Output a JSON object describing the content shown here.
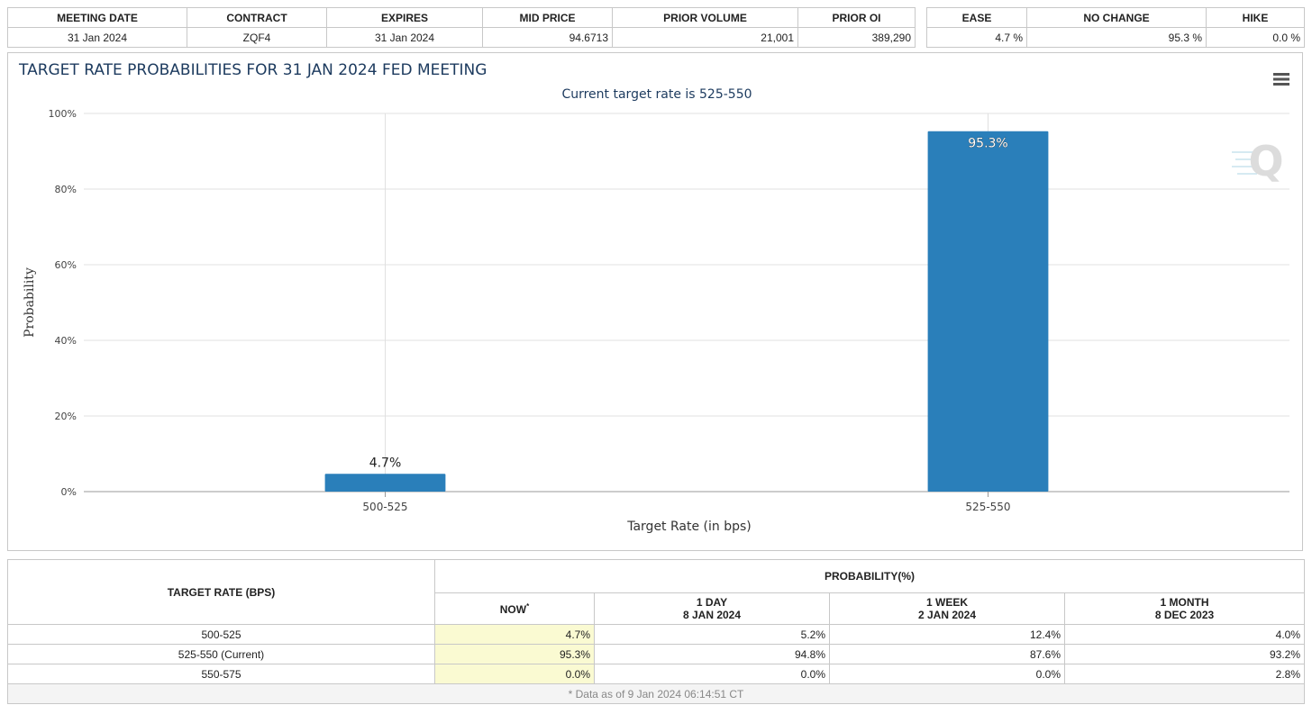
{
  "contract_table": {
    "headers": [
      "MEETING DATE",
      "CONTRACT",
      "EXPIRES",
      "MID PRICE",
      "PRIOR VOLUME",
      "PRIOR OI"
    ],
    "row": [
      "31 Jan 2024",
      "ZQF4",
      "31 Jan 2024",
      "94.6713",
      "21,001",
      "389,290"
    ]
  },
  "summary_table": {
    "headers": [
      "EASE",
      "NO CHANGE",
      "HIKE"
    ],
    "row": [
      "4.7 %",
      "95.3 %",
      "0.0 %"
    ]
  },
  "chart_data": {
    "type": "bar",
    "title": "TARGET RATE PROBABILITIES FOR 31 JAN 2024 FED MEETING",
    "subtitle": "Current target rate is 525-550",
    "xlabel": "Target Rate (in bps)",
    "ylabel": "Probability",
    "categories": [
      "500-525",
      "525-550"
    ],
    "values": [
      4.7,
      95.3
    ],
    "value_labels": [
      "4.7%",
      "95.3%"
    ],
    "ylim": [
      0,
      100
    ],
    "yticks": [
      "0%",
      "20%",
      "40%",
      "60%",
      "80%",
      "100%"
    ],
    "grid": true,
    "bar_color": "#2a7fba",
    "menu_icon": "hamburger-menu-icon",
    "watermark_icon": "q-logo-icon"
  },
  "probability_table": {
    "rate_header": "TARGET RATE (BPS)",
    "group_header": "PROBABILITY(%)",
    "columns": [
      {
        "line1": "NOW",
        "line2": "",
        "mark": "*"
      },
      {
        "line1": "1 DAY",
        "line2": "8 JAN 2024",
        "mark": ""
      },
      {
        "line1": "1 WEEK",
        "line2": "2 JAN 2024",
        "mark": ""
      },
      {
        "line1": "1 MONTH",
        "line2": "8 DEC 2023",
        "mark": ""
      }
    ],
    "rows": [
      {
        "rate": "500-525",
        "values": [
          "4.7%",
          "5.2%",
          "12.4%",
          "4.0%"
        ]
      },
      {
        "rate": "525-550 (Current)",
        "values": [
          "95.3%",
          "94.8%",
          "87.6%",
          "93.2%"
        ]
      },
      {
        "rate": "550-575",
        "values": [
          "0.0%",
          "0.0%",
          "0.0%",
          "2.8%"
        ]
      }
    ],
    "footnote": "* Data as of 9 Jan 2024 06:14:51 CT"
  }
}
